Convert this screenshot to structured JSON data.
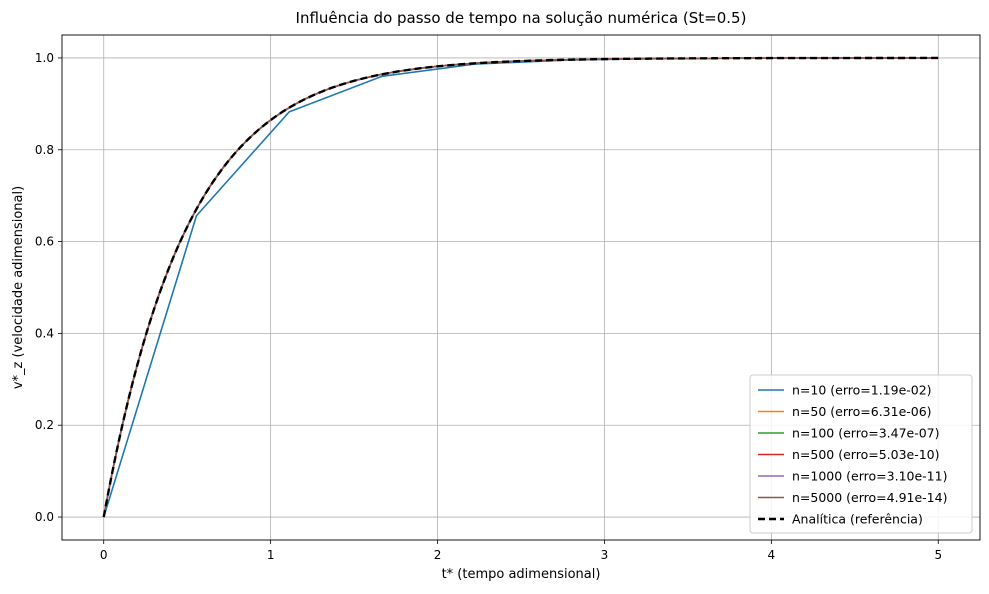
{
  "chart_data": {
    "type": "line",
    "title": "Influência do passo de tempo na solução numérica (St=0.5)",
    "xlabel": "t* (tempo adimensional)",
    "ylabel": "v*_z (velocidade adimensional)",
    "xlim": [
      -0.25,
      5.25
    ],
    "ylim": [
      -0.05,
      1.05
    ],
    "xticks": [
      "0",
      "1",
      "2",
      "3",
      "4",
      "5"
    ],
    "yticks": [
      "0.0",
      "0.2",
      "0.4",
      "0.6",
      "0.8",
      "1.0"
    ],
    "grid": true,
    "legend_position": "lower-right",
    "series": [
      {
        "name": "n=10 (erro=1.19e-02)",
        "color": "#1f77b4",
        "style": "solid",
        "x": [
          0,
          0.5556,
          1.1111,
          1.6667,
          2.2222,
          2.7778,
          3.3333,
          3.8889,
          4.4444,
          5.0
        ],
        "y": [
          0,
          0.6563,
          0.8825,
          0.96,
          0.9866,
          0.9955,
          0.9985,
          0.9995,
          0.9998,
          0.9999
        ]
      },
      {
        "name": "n=50 (erro=6.31e-06)",
        "color": "#ff7f0e",
        "style": "solid",
        "function": "1-exp(-t/0.5)"
      },
      {
        "name": "n=100 (erro=3.47e-07)",
        "color": "#2ca02c",
        "style": "solid",
        "function": "1-exp(-t/0.5)"
      },
      {
        "name": "n=500 (erro=5.03e-10)",
        "color": "#d62728",
        "style": "solid",
        "function": "1-exp(-t/0.5)"
      },
      {
        "name": "n=1000 (erro=3.10e-11)",
        "color": "#9467bd",
        "style": "solid",
        "function": "1-exp(-t/0.5)"
      },
      {
        "name": "n=5000 (erro=4.91e-14)",
        "color": "#8c564b",
        "style": "solid",
        "function": "1-exp(-t/0.5)"
      },
      {
        "name": "Analítica (referência)",
        "color": "#000000",
        "style": "dashed",
        "function": "1-exp(-t/0.5)"
      }
    ]
  }
}
